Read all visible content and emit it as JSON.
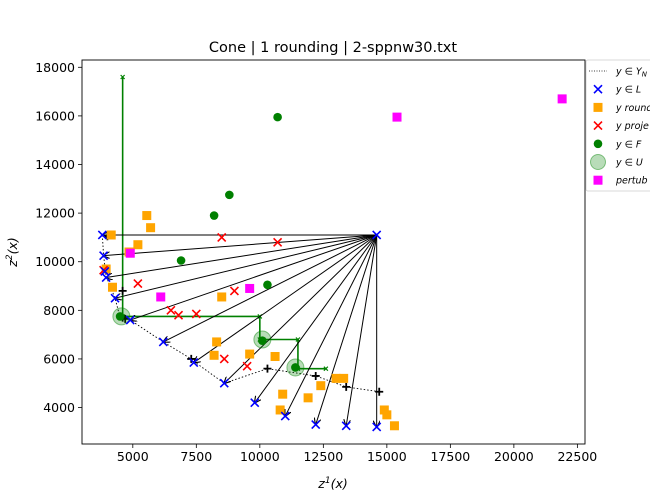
{
  "chart_data": {
    "type": "scatter",
    "title": "Cone | 1 rounding | 2-sppnw30.txt",
    "xlabel": "z^1(x)",
    "ylabel": "z^2(x)",
    "xlim": [
      3000,
      22800
    ],
    "ylim": [
      2500,
      18300
    ],
    "xticks": [
      5000,
      7500,
      10000,
      12500,
      15000,
      17500,
      20000,
      22500
    ],
    "yticks": [
      4000,
      6000,
      8000,
      10000,
      12000,
      14000,
      16000,
      18000
    ],
    "xtick_labels": [
      "5000",
      "7500",
      "10000",
      "12500",
      "15000",
      "17500",
      "20000",
      "22500"
    ],
    "ytick_labels": [
      "4000",
      "6000",
      "8000",
      "10000",
      "12000",
      "14000",
      "16000",
      "18000"
    ],
    "grid": false,
    "legend_position": "upper-right outside",
    "legend": [
      {
        "key": "yn",
        "label": "y ∈ Y_N",
        "main": "y ∈ ",
        "sub": "N",
        "suffix": "Y",
        "marker": "dotline",
        "color": "#000000"
      },
      {
        "key": "L",
        "label": "y ∈ L",
        "main": "y ∈ L",
        "sub": "",
        "marker": "x",
        "color": "#0000ff"
      },
      {
        "key": "round",
        "label": "y round",
        "main": "y round",
        "sub": "",
        "marker": "square",
        "color": "#ffa500"
      },
      {
        "key": "proj",
        "label": "y proje",
        "main": "y proje",
        "sub": "",
        "marker": "x",
        "color": "#ff0000"
      },
      {
        "key": "F",
        "label": "y ∈ F",
        "main": "y ∈ F",
        "sub": "",
        "marker": "circle",
        "color": "#008000"
      },
      {
        "key": "U",
        "label": "y ∈ U",
        "main": "y ∈ U",
        "sub": "",
        "marker": "bigcircle",
        "color": "#008000"
      },
      {
        "key": "pert",
        "label": "pertub",
        "main": "pertub",
        "sub": "",
        "marker": "square",
        "color": "#ff00ff"
      }
    ],
    "colors": {
      "blue": "#0000ff",
      "orange": "#ffa500",
      "red": "#ff0000",
      "green": "#008000",
      "magenta": "#ff00ff",
      "black": "#000000"
    },
    "nondominated_line": [
      [
        3800,
        11100
      ],
      [
        3850,
        10250
      ],
      [
        3950,
        9400
      ],
      [
        4300,
        8500
      ],
      [
        4500,
        7700
      ],
      [
        4900,
        7600
      ],
      [
        6200,
        6700
      ],
      [
        7300,
        6000
      ],
      [
        7400,
        5900
      ],
      [
        8600,
        5000
      ],
      [
        10300,
        5600
      ],
      [
        12200,
        5300
      ],
      [
        13400,
        4850
      ],
      [
        14700,
        4650
      ]
    ],
    "nondominated_plus": [
      [
        4000,
        11050
      ],
      [
        4600,
        8800
      ],
      [
        4600,
        7700
      ],
      [
        4700,
        7650
      ],
      [
        7300,
        6000
      ],
      [
        10300,
        5600
      ],
      [
        12200,
        5300
      ],
      [
        13400,
        4850
      ],
      [
        14700,
        4650
      ]
    ],
    "L": [
      [
        3800,
        11100
      ],
      [
        3850,
        10250
      ],
      [
        3900,
        9600
      ],
      [
        3950,
        9350
      ],
      [
        4300,
        8500
      ],
      [
        4900,
        7600
      ],
      [
        6200,
        6700
      ],
      [
        7400,
        5850
      ],
      [
        8600,
        5000
      ],
      [
        9800,
        4200
      ],
      [
        11000,
        3650
      ],
      [
        12200,
        3300
      ],
      [
        13400,
        3250
      ],
      [
        14600,
        3200
      ],
      [
        14600,
        11100
      ]
    ],
    "rounded": [
      [
        4150,
        11100
      ],
      [
        5550,
        11900
      ],
      [
        5700,
        11400
      ],
      [
        5200,
        10700
      ],
      [
        4850,
        10400
      ],
      [
        3950,
        9700
      ],
      [
        4200,
        8950
      ],
      [
        8500,
        8550
      ],
      [
        8300,
        6700
      ],
      [
        8200,
        6150
      ],
      [
        9600,
        6200
      ],
      [
        10600,
        6100
      ],
      [
        10900,
        4550
      ],
      [
        11900,
        4400
      ],
      [
        12400,
        4900
      ],
      [
        13000,
        5200
      ],
      [
        13300,
        5200
      ],
      [
        10800,
        3900
      ],
      [
        14900,
        3900
      ],
      [
        15000,
        3700
      ],
      [
        15300,
        3250
      ]
    ],
    "projected": [
      [
        3850,
        9650
      ],
      [
        5200,
        9100
      ],
      [
        6500,
        8000
      ],
      [
        6800,
        7800
      ],
      [
        7500,
        7850
      ],
      [
        8500,
        11000
      ],
      [
        9000,
        8800
      ],
      [
        10700,
        10800
      ],
      [
        8600,
        6000
      ],
      [
        9500,
        5700
      ]
    ],
    "F": [
      [
        10700,
        15950
      ],
      [
        8800,
        12750
      ],
      [
        8200,
        11900
      ],
      [
        6900,
        10050
      ],
      [
        10300,
        9050
      ],
      [
        4500,
        7750
      ],
      [
        10100,
        6750
      ],
      [
        11400,
        5650
      ]
    ],
    "U": [
      [
        4550,
        7750
      ],
      [
        10100,
        6800
      ],
      [
        11400,
        5650
      ]
    ],
    "perturbed": [
      [
        21900,
        16700
      ],
      [
        15400,
        15950
      ],
      [
        4900,
        10350
      ],
      [
        6100,
        8550
      ],
      [
        9600,
        8900
      ]
    ],
    "cone_origin": [
      14600,
      11100
    ],
    "cone_targets": [
      [
        3800,
        11100
      ],
      [
        3850,
        10250
      ],
      [
        3950,
        9350
      ],
      [
        4300,
        8500
      ],
      [
        4900,
        7600
      ],
      [
        6200,
        6700
      ],
      [
        7400,
        5850
      ],
      [
        8600,
        5000
      ],
      [
        9800,
        4200
      ],
      [
        11000,
        3650
      ],
      [
        12200,
        3300
      ],
      [
        13400,
        3250
      ],
      [
        14600,
        3200
      ]
    ],
    "green_frame": [
      [
        4600,
        17600
      ],
      [
        4600,
        7750
      ],
      [
        10000,
        7750
      ],
      [
        10000,
        6800
      ],
      [
        11500,
        6800
      ],
      [
        11500,
        5600
      ],
      [
        12600,
        5600
      ]
    ]
  }
}
